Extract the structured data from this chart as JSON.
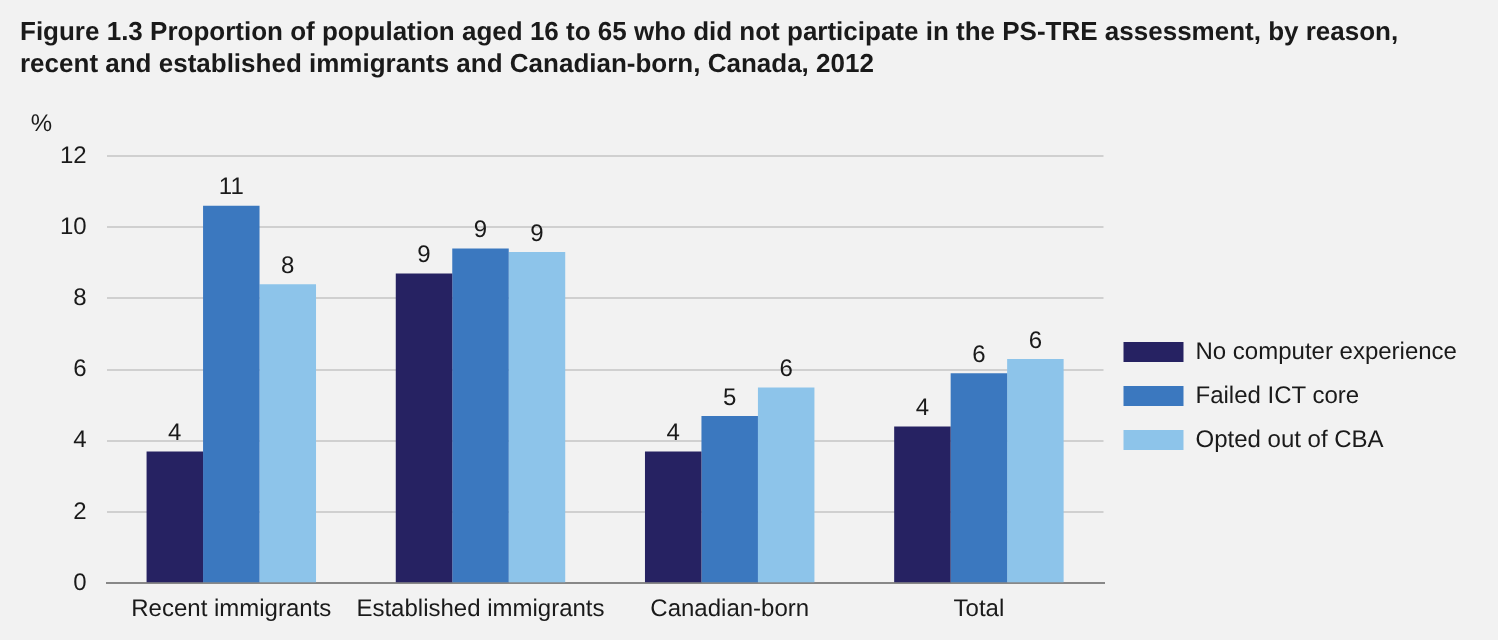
{
  "chart_data": {
    "type": "bar",
    "title": "Figure 1.3 Proportion of population aged 16 to 65 who did not participate in the PS-TRE assessment, by reason, recent and established immigrants and Canadian-born, Canada, 2012",
    "ylabel": "%",
    "categories": [
      "Recent immigrants",
      "Established immigrants",
      "Canadian-born",
      "Total"
    ],
    "series": [
      {
        "name": "No computer experience",
        "color": "#262262",
        "values": [
          3.7,
          8.7,
          3.7,
          4.4
        ],
        "value_labels": [
          "4",
          "9",
          "4",
          "4"
        ]
      },
      {
        "name": "Failed ICT core",
        "color": "#3b78bf",
        "values": [
          10.6,
          9.4,
          4.7,
          5.9
        ],
        "value_labels": [
          "11",
          "9",
          "5",
          "6"
        ]
      },
      {
        "name": "Opted out of CBA",
        "color": "#8dc4ea",
        "values": [
          8.4,
          9.3,
          5.5,
          6.3
        ],
        "value_labels": [
          "8",
          "9",
          "6",
          "6"
        ]
      }
    ],
    "ylim": [
      0,
      12
    ],
    "yticks": [
      0,
      2,
      4,
      6,
      8,
      10,
      12
    ],
    "grid": "y",
    "legend": "right"
  }
}
